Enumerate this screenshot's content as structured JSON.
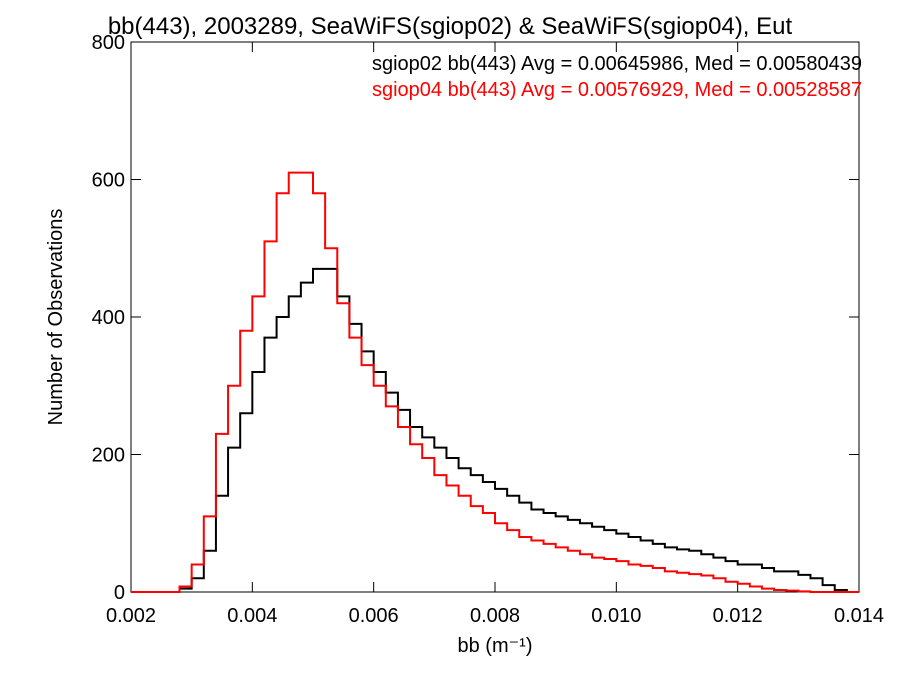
{
  "chart_data": {
    "type": "line",
    "title": "bb(443), 2003289, SeaWiFS(sgiop02) & SeaWiFS(sgiop04), Eut",
    "xlabel": "bb (m⁻¹)",
    "ylabel": "Number of Observations",
    "xlim": [
      0.002,
      0.014
    ],
    "ylim": [
      0,
      800
    ],
    "xticks": [
      "0.002",
      "0.004",
      "0.006",
      "0.008",
      "0.010",
      "0.012",
      "0.014"
    ],
    "xtick_values": [
      0.002,
      0.004,
      0.006,
      0.008,
      0.01,
      0.012,
      0.014
    ],
    "yticks": [
      "0",
      "200",
      "400",
      "600",
      "800"
    ],
    "ytick_values": [
      0,
      200,
      400,
      600,
      800
    ],
    "grid": false,
    "legend_position": "top-right",
    "annotations": [
      {
        "text": "sgiop02 bb(443) Avg = 0.00645986, Med = 0.00580439",
        "color": "#000000"
      },
      {
        "text": "sgiop04 bb(443) Avg = 0.00576929, Med = 0.00528587",
        "color": "#ff0000"
      }
    ],
    "series": [
      {
        "color": "#000000",
        "x": [
          0.002,
          0.0026,
          0.0028,
          0.003,
          0.0032,
          0.0034,
          0.0036,
          0.0038,
          0.004,
          0.0042,
          0.0044,
          0.0046,
          0.0048,
          0.005,
          0.0052,
          0.0054,
          0.0056,
          0.0058,
          0.006,
          0.0062,
          0.0064,
          0.0066,
          0.0068,
          0.007,
          0.0072,
          0.0074,
          0.0076,
          0.0078,
          0.008,
          0.0082,
          0.0084,
          0.0086,
          0.0088,
          0.009,
          0.0092,
          0.0094,
          0.0096,
          0.0098,
          0.01,
          0.0102,
          0.0104,
          0.0106,
          0.0108,
          0.011,
          0.0112,
          0.0114,
          0.0116,
          0.0118,
          0.012,
          0.0122,
          0.0124,
          0.0126,
          0.0128,
          0.013,
          0.0132,
          0.0134,
          0.0136,
          0.0138,
          0.014
        ],
        "values": [
          0,
          0,
          5,
          20,
          60,
          140,
          210,
          260,
          320,
          370,
          400,
          430,
          450,
          470,
          470,
          430,
          390,
          350,
          320,
          290,
          265,
          240,
          225,
          210,
          195,
          180,
          170,
          160,
          150,
          140,
          130,
          120,
          115,
          110,
          105,
          100,
          95,
          90,
          85,
          80,
          75,
          70,
          65,
          62,
          60,
          55,
          50,
          45,
          40,
          40,
          35,
          30,
          30,
          25,
          20,
          10,
          3,
          0,
          0
        ]
      },
      {
        "color": "#ff0000",
        "x": [
          0.002,
          0.0026,
          0.0028,
          0.003,
          0.0032,
          0.0034,
          0.0036,
          0.0038,
          0.004,
          0.0042,
          0.0044,
          0.0046,
          0.0048,
          0.005,
          0.0052,
          0.0054,
          0.0056,
          0.0058,
          0.006,
          0.0062,
          0.0064,
          0.0066,
          0.0068,
          0.007,
          0.0072,
          0.0074,
          0.0076,
          0.0078,
          0.008,
          0.0082,
          0.0084,
          0.0086,
          0.0088,
          0.009,
          0.0092,
          0.0094,
          0.0096,
          0.0098,
          0.01,
          0.0102,
          0.0104,
          0.0106,
          0.0108,
          0.011,
          0.0112,
          0.0114,
          0.0116,
          0.0118,
          0.012,
          0.0122,
          0.0124,
          0.0126,
          0.0128,
          0.013,
          0.0132,
          0.0134,
          0.0136,
          0.0138,
          0.014
        ],
        "values": [
          0,
          0,
          8,
          40,
          110,
          230,
          300,
          380,
          430,
          510,
          580,
          610,
          610,
          580,
          500,
          420,
          370,
          330,
          300,
          270,
          240,
          215,
          195,
          170,
          155,
          140,
          125,
          115,
          100,
          90,
          80,
          75,
          70,
          65,
          60,
          55,
          50,
          48,
          45,
          40,
          38,
          35,
          30,
          28,
          26,
          24,
          20,
          15,
          12,
          8,
          5,
          3,
          2,
          1,
          0,
          0,
          0,
          0,
          0
        ]
      }
    ]
  }
}
